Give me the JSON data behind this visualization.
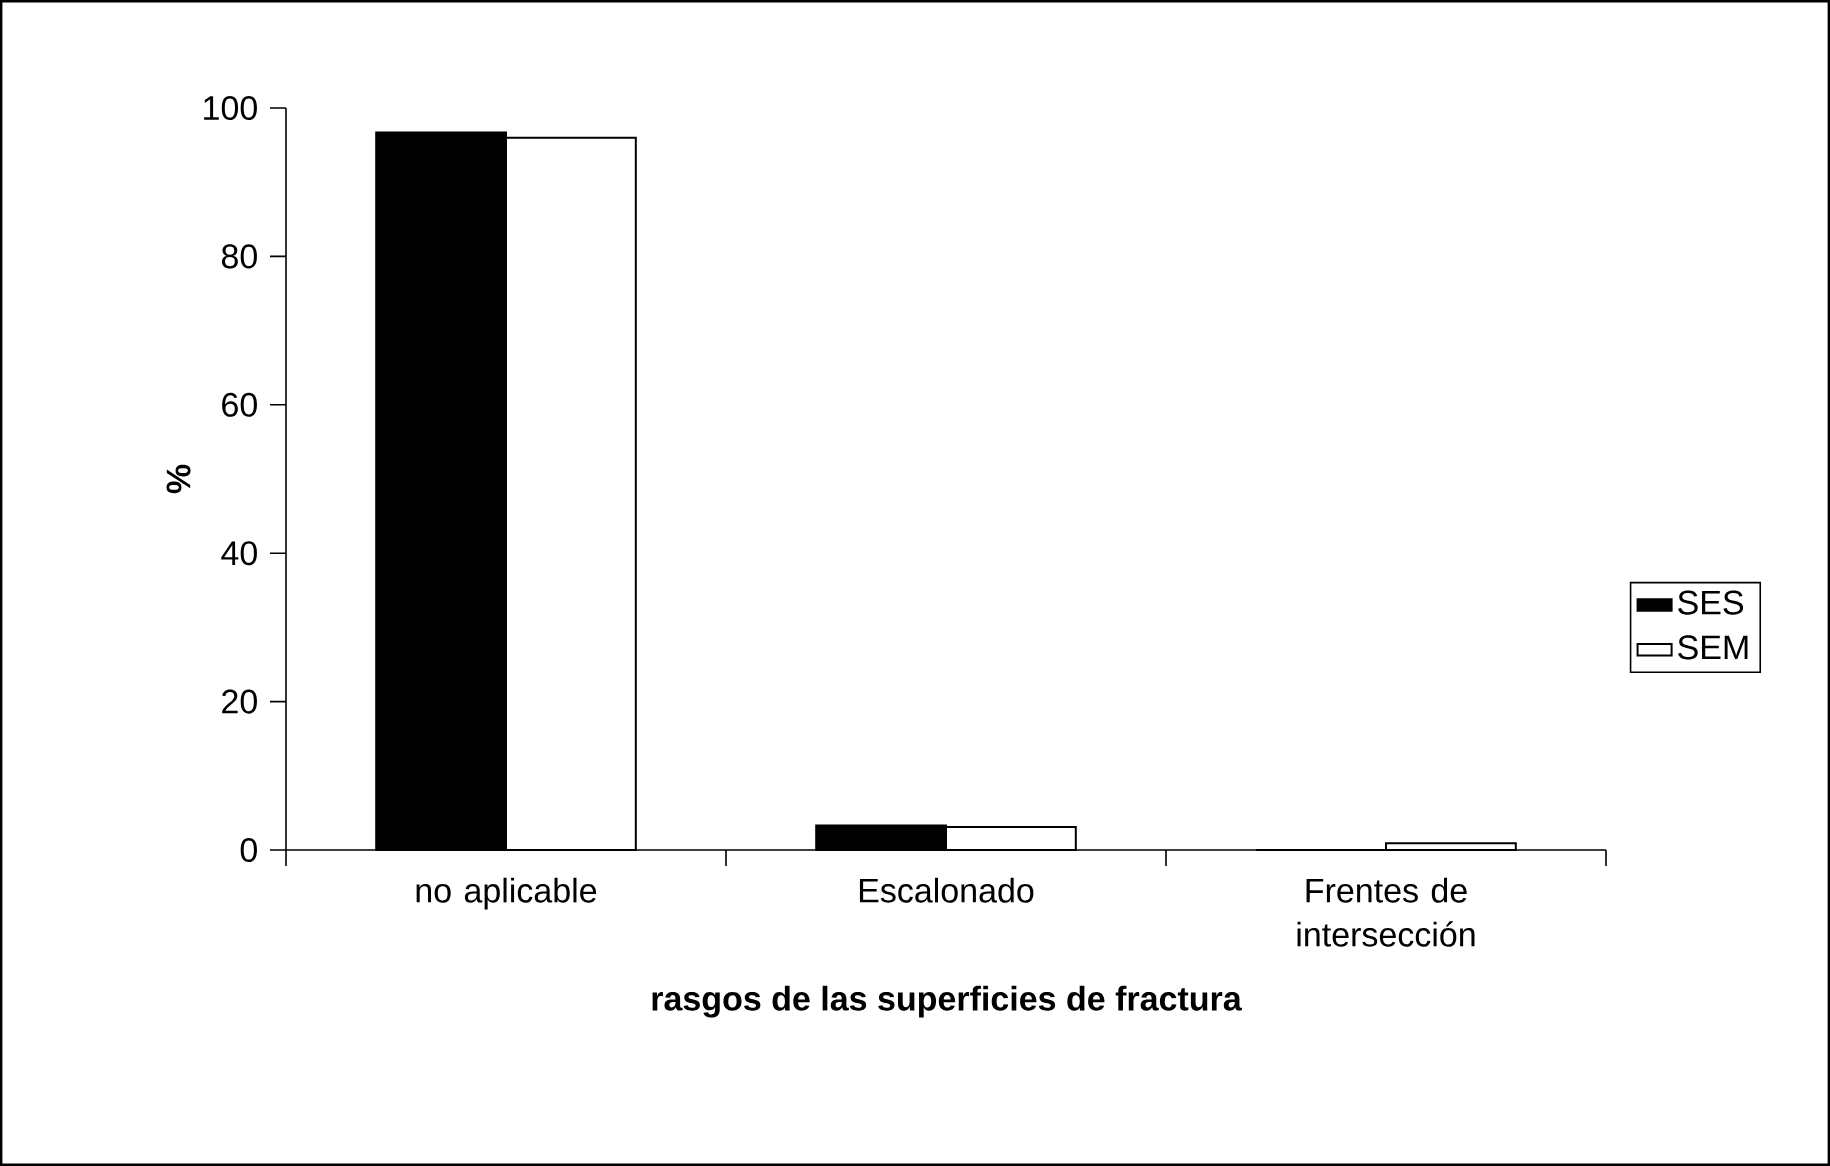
{
  "chart_data": {
    "type": "bar",
    "xlabel": "rasgos de las superficies de fractura",
    "ylabel": "%",
    "categories": [
      "no aplicable",
      "Escalonado",
      "Frentes de intersección"
    ],
    "series": [
      {
        "name": "SES",
        "color": "#000000",
        "values": [
          96.7,
          3.3,
          0
        ]
      },
      {
        "name": "SEM",
        "color": "#ffffff",
        "values": [
          96,
          3.1,
          0.9
        ]
      }
    ],
    "ylim": [
      0,
      100
    ],
    "yticks": [
      0,
      20,
      40,
      60,
      80,
      100
    ],
    "grid": false,
    "legend": "right"
  }
}
